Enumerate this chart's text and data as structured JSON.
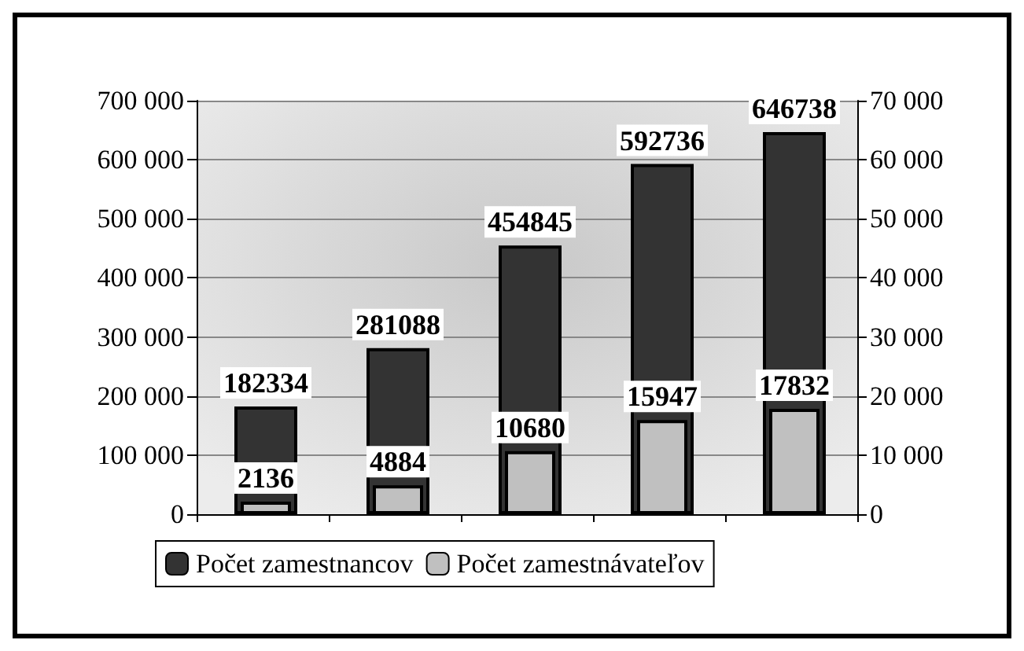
{
  "chart_data": {
    "type": "bar",
    "categories": [
      null,
      null,
      null,
      null,
      null
    ],
    "series": [
      {
        "name": "Počet zamestnancov",
        "color": "#333333",
        "values": [
          182334,
          281088,
          454845,
          592736,
          646738
        ]
      },
      {
        "name": "Počet zamestnávateľov",
        "color": "#c0c0c0",
        "values": [
          2136,
          4884,
          10680,
          15947,
          17832
        ],
        "axis": "y2"
      }
    ],
    "ylim": [
      0,
      700000
    ],
    "yticks": [
      {
        "value": 0,
        "label": "0"
      },
      {
        "value": 100000,
        "label": "100 000"
      },
      {
        "value": 200000,
        "label": "200 000"
      },
      {
        "value": 300000,
        "label": "300 000"
      },
      {
        "value": 400000,
        "label": "400 000"
      },
      {
        "value": 500000,
        "label": "500 000"
      },
      {
        "value": 600000,
        "label": "600 000"
      },
      {
        "value": 700000,
        "label": "700 000"
      }
    ],
    "y2lim": [
      0,
      70000
    ],
    "y2ticks": [
      {
        "value": 0,
        "label": "0"
      },
      {
        "value": 10000,
        "label": "10 000"
      },
      {
        "value": 20000,
        "label": "20 000"
      },
      {
        "value": 30000,
        "label": "30 000"
      },
      {
        "value": 40000,
        "label": "40 000"
      },
      {
        "value": 50000,
        "label": "50 000"
      },
      {
        "value": 60000,
        "label": "60 000"
      },
      {
        "value": 70000,
        "label": "70 000"
      }
    ],
    "grid": "y",
    "legend": "bottom",
    "data_labels": true
  }
}
